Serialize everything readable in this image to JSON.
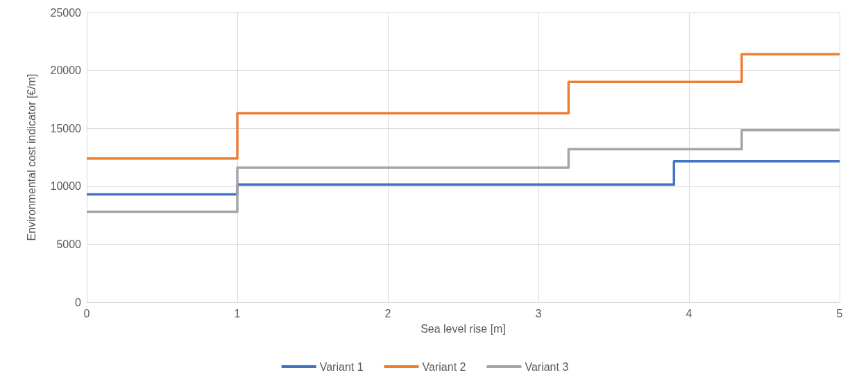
{
  "chart_data": {
    "type": "step",
    "xlabel": "Sea level rise [m]",
    "ylabel": "Environmental cost indicator [€/m]",
    "xlim": [
      0,
      5
    ],
    "xticks": [
      0,
      1,
      2,
      3,
      4,
      5
    ],
    "ylim": [
      0,
      25000
    ],
    "yticks": [
      0,
      5000,
      10000,
      15000,
      20000,
      25000
    ],
    "grid": true,
    "legend": "bottom",
    "marker": "none",
    "line_style": "solid",
    "series": [
      {
        "name": "Variant 1",
        "color": "#4472c4",
        "x": [
          0,
          1,
          3.9,
          5
        ],
        "values": [
          9300,
          10150,
          12150,
          12150
        ]
      },
      {
        "name": "Variant 2",
        "color": "#ed7d31",
        "x": [
          0,
          1,
          3.2,
          4.35,
          5
        ],
        "values": [
          12400,
          16300,
          19000,
          21400,
          21400
        ]
      },
      {
        "name": "Variant 3",
        "color": "#a5a5a5",
        "x": [
          0,
          1,
          3.2,
          4.35,
          5
        ],
        "values": [
          7800,
          11600,
          13200,
          14850,
          14850
        ]
      }
    ]
  }
}
